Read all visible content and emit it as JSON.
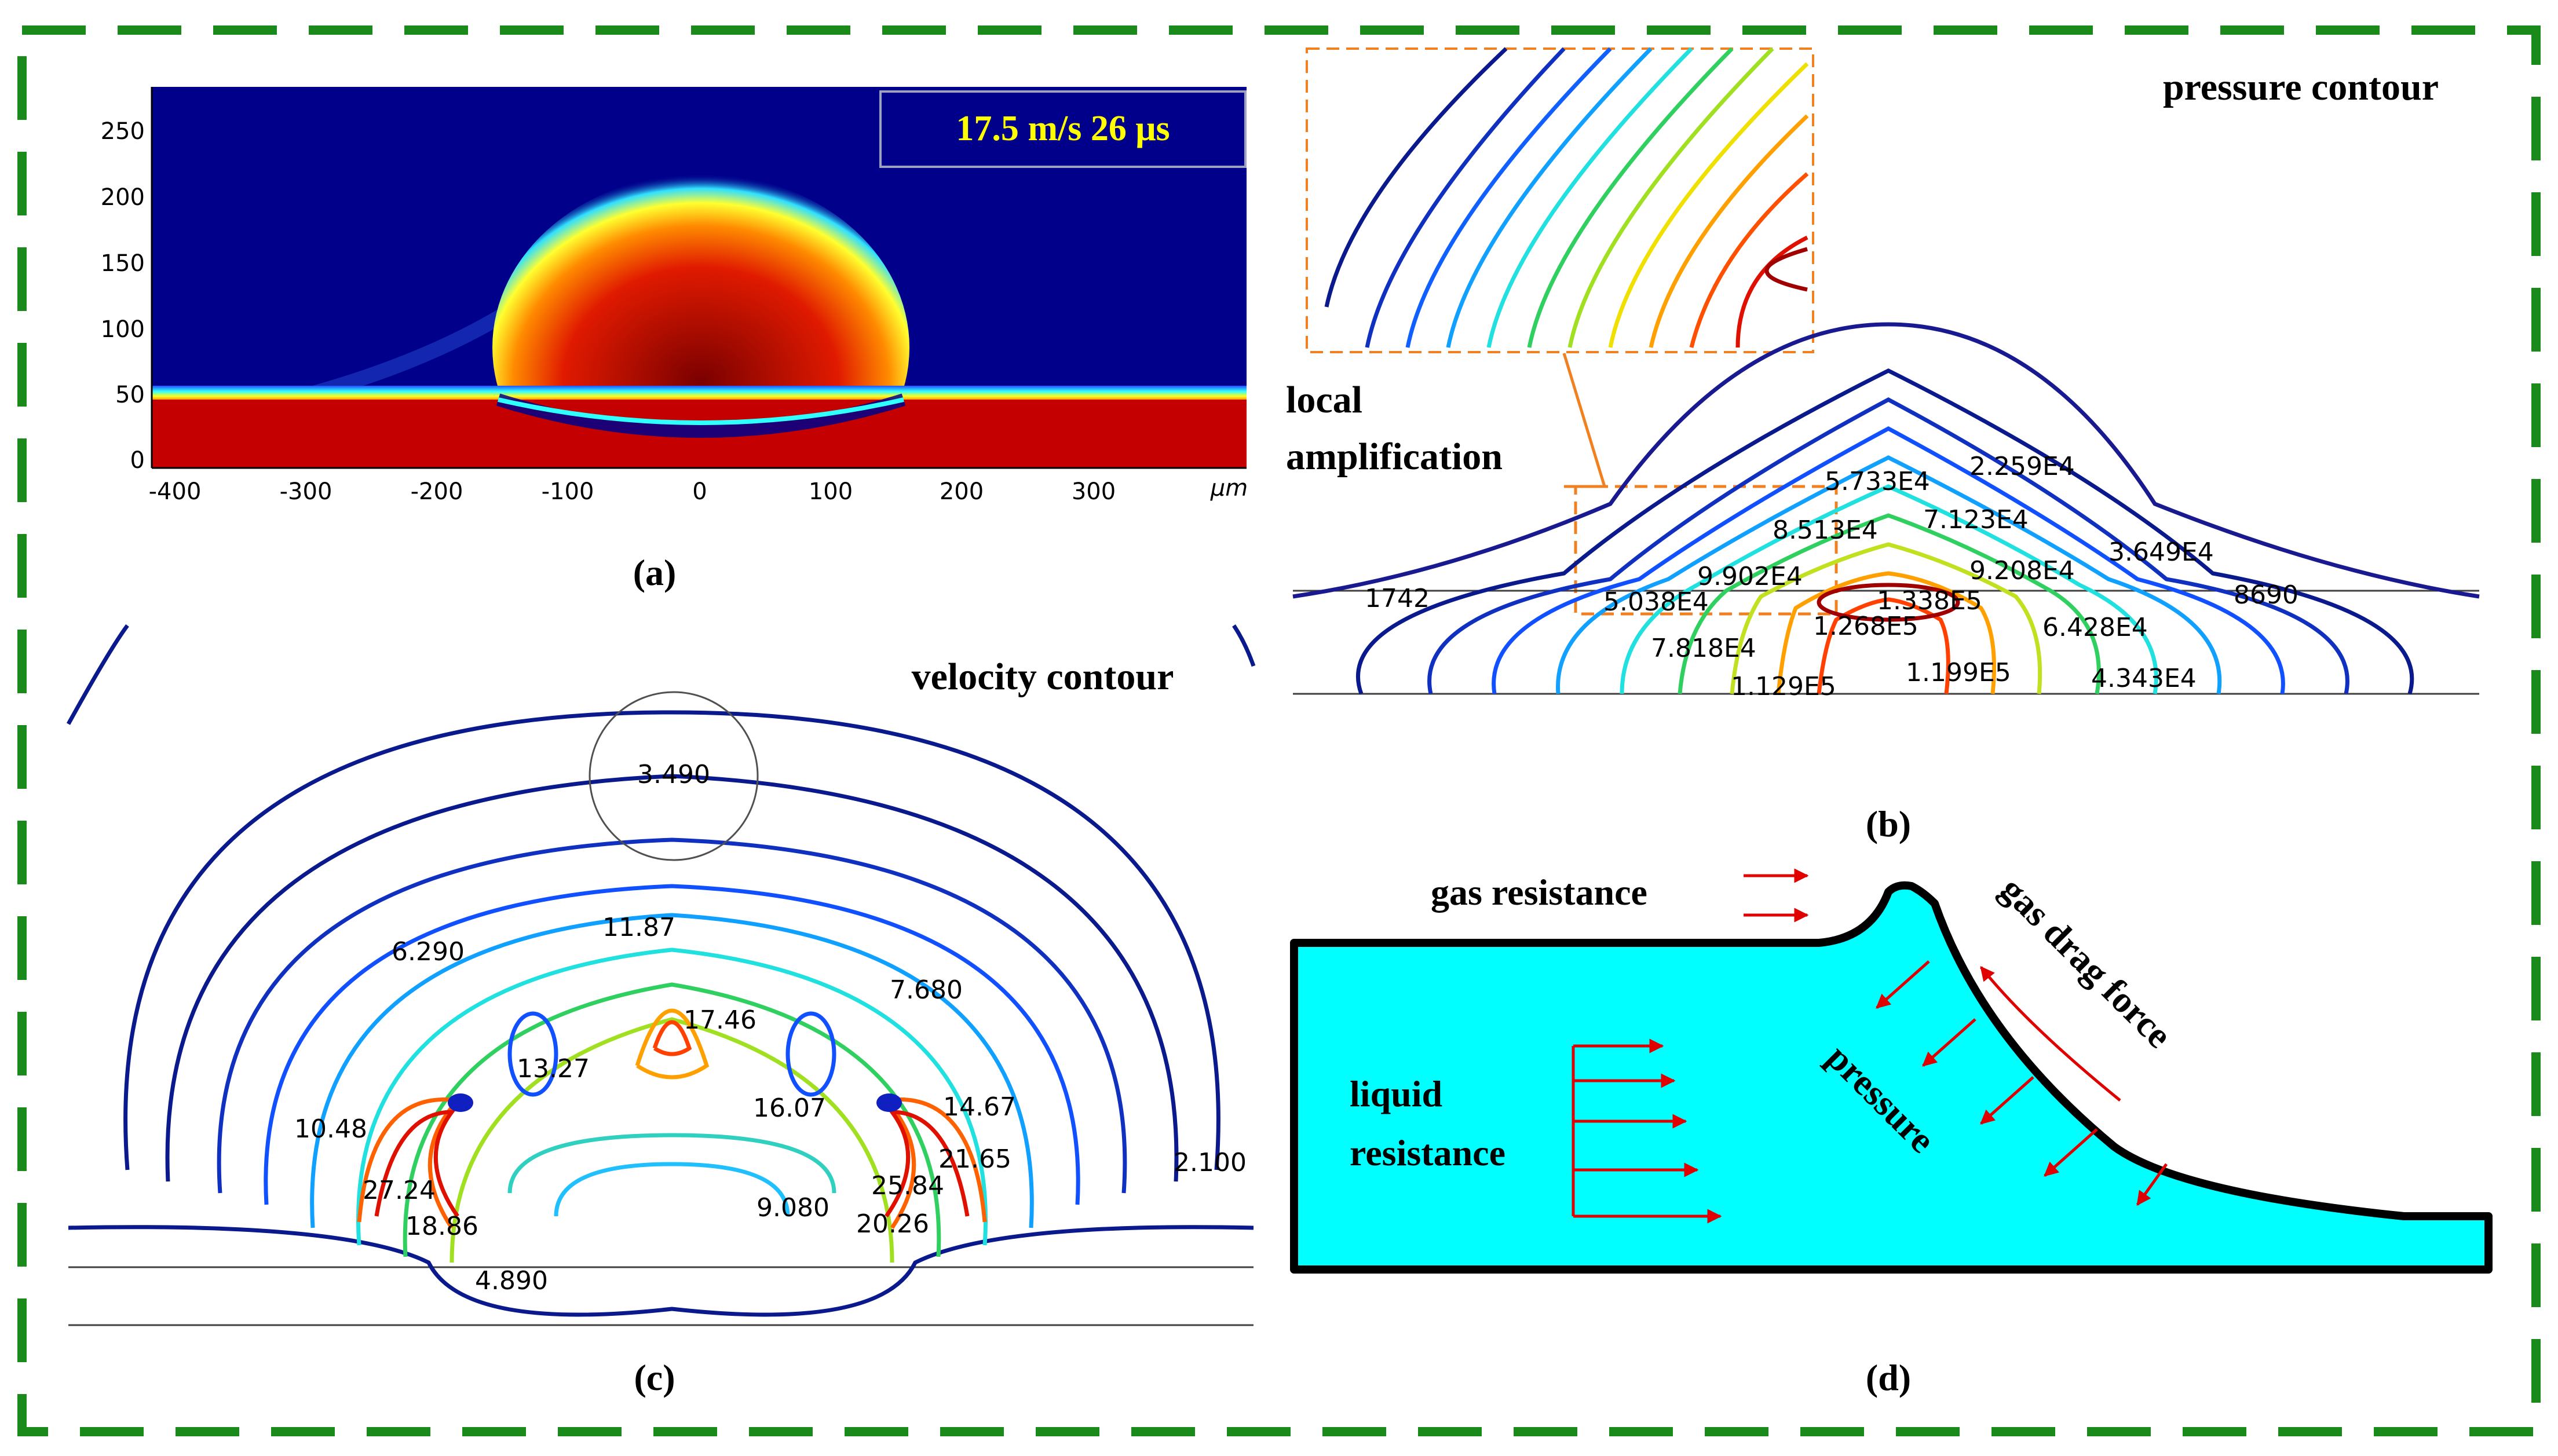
{
  "panel_a": {
    "caption": "(a)",
    "annotation": "17.5 m/s 26 μs",
    "x_ticks": [
      "-400",
      "-300",
      "-200",
      "-100",
      "0",
      "100",
      "200",
      "300"
    ],
    "y_ticks": [
      "0",
      "50",
      "100",
      "150",
      "200",
      "250"
    ],
    "x_unit": "μm"
  },
  "panel_b": {
    "caption": "(b)",
    "title": "pressure contour",
    "local_label_1": "local",
    "local_label_2": "amplification",
    "labels": [
      "5.733E4",
      "2.259E4",
      "8.513E4",
      "7.123E4",
      "3.649E4",
      "9.902E4",
      "9.208E4",
      "1742",
      "5.038E4",
      "1.338E5",
      "1.268E5",
      "6.428E4",
      "8690",
      "7.818E4",
      "1.199E5",
      "1.129E5",
      "4.343E4"
    ]
  },
  "panel_c": {
    "caption": "(c)",
    "title": "velocity contour",
    "labels": [
      "3.490",
      "11.87",
      "6.290",
      "7.680",
      "17.46",
      "13.27",
      "16.07",
      "10.48",
      "14.67",
      "21.65",
      "27.24",
      "25.84",
      "18.86",
      "9.080",
      "20.26",
      "2.100",
      "4.890"
    ]
  },
  "panel_d": {
    "caption": "(d)",
    "gas_resistance": "gas resistance",
    "gas_drag_force": "gas drag force",
    "pressure": "pressure",
    "liquid_1": "liquid",
    "liquid_2": "resistance"
  },
  "colors": {
    "frame": "#1a8a1a",
    "liquid": "#00ffff",
    "arrow": "#e00000",
    "contour_blue": "#0a1a8c",
    "orange": "#f08020"
  }
}
